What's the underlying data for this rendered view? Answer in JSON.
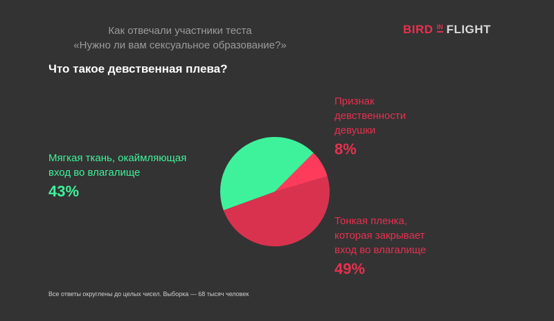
{
  "header": {
    "subtitle_lines": [
      "Как отвечали участники теста",
      "«Нужно ли вам сексуальное образование?»"
    ],
    "logo": {
      "bird": "BIRD",
      "in": "IN",
      "flight": "FLIGHT"
    }
  },
  "chart_data": {
    "type": "pie",
    "title": "Что такое девственная плева?",
    "slices": [
      {
        "label_lines": [
          "Мягкая ткань, окаймляющая",
          "вход во влагалище"
        ],
        "value": 43,
        "value_text": "43%",
        "color": "#3ef29b"
      },
      {
        "label_lines": [
          "Признак",
          "девственности",
          "девушки"
        ],
        "value": 8,
        "value_text": "8%",
        "color": "#ff3b5c"
      },
      {
        "label_lines": [
          "Тонкая пленка,",
          "которая закрывает",
          "вход во влагалище"
        ],
        "value": 49,
        "value_text": "49%",
        "color": "#d8324f"
      }
    ]
  },
  "footnote": "Все ответы округлены до целых чисел. Выборка — 68 тысяч человек"
}
